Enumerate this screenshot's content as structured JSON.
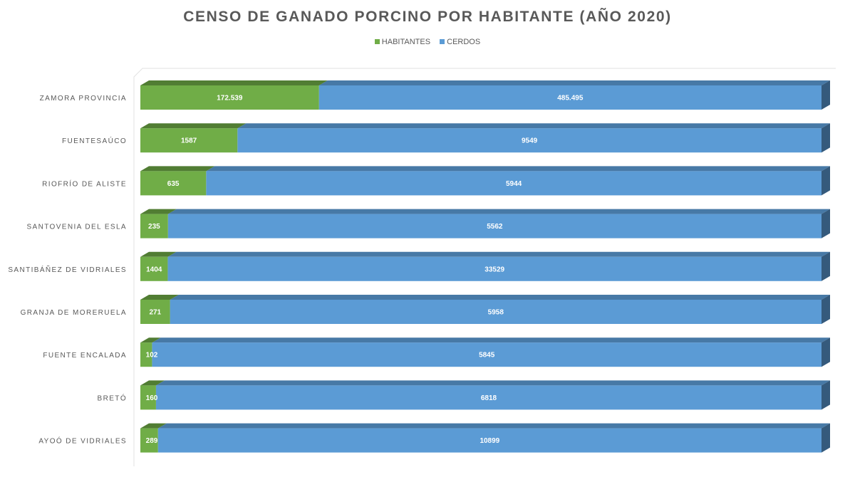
{
  "chart_data": {
    "type": "bar",
    "orientation": "horizontal",
    "stacked": "percent",
    "title": "CENSO DE GANADO PORCINO POR HABITANTE (AÑO 2020)",
    "categories": [
      "ZAMORA PROVINCIA",
      "FUENTESAÚCO",
      "RIOFRÍO DE ALISTE",
      "SANTOVENIA DEL ESLA",
      "SANTIBÁÑEZ DE VIDRIALES",
      "GRANJA DE MORERUELA",
      "FUENTE ENCALADA",
      "BRETÓ",
      "AYOÓ DE VIDRIALES"
    ],
    "series": [
      {
        "name": "HABITANTES",
        "color": "#70ad47",
        "values": [
          172539,
          1587,
          635,
          235,
          1404,
          271,
          102,
          160,
          289
        ],
        "labels": [
          "172.539",
          "1587",
          "635",
          "235",
          "1404",
          "271",
          "102",
          "160",
          "289"
        ]
      },
      {
        "name": "CERDOS",
        "color": "#5b9bd5",
        "values": [
          485495,
          9549,
          5944,
          5562,
          33529,
          5958,
          5845,
          6818,
          10899
        ],
        "labels": [
          "485.495",
          "9549",
          "5944",
          "5562",
          "33529",
          "5958",
          "5845",
          "6818",
          "10899"
        ]
      }
    ],
    "legend_position": "top",
    "grid": false
  }
}
